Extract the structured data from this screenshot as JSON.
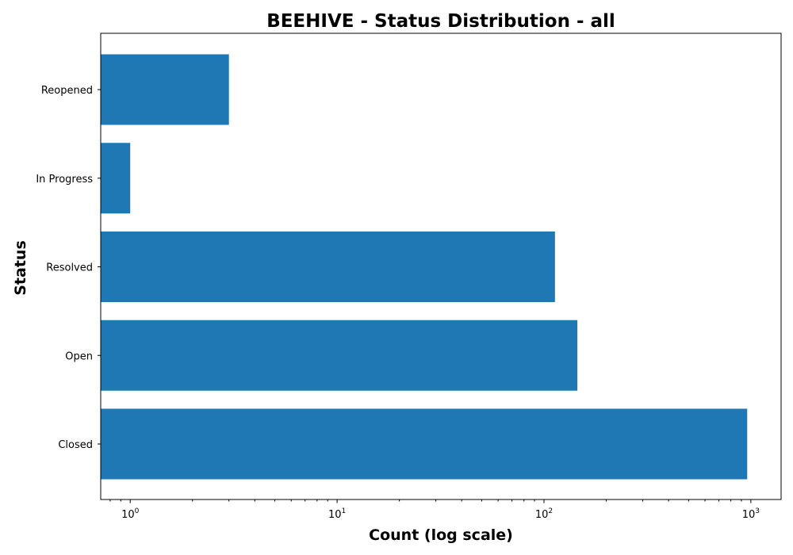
{
  "chart_data": {
    "type": "bar",
    "orientation": "horizontal",
    "title": "BEEHIVE - Status Distribution - all",
    "xlabel": "Count (log scale)",
    "ylabel": "Status",
    "x_scale": "log",
    "xlim": [
      0.72,
      1400
    ],
    "x_ticks": [
      {
        "value": 1,
        "base": "10",
        "exp": "0"
      },
      {
        "value": 10,
        "base": "10",
        "exp": "1"
      },
      {
        "value": 100,
        "base": "10",
        "exp": "2"
      },
      {
        "value": 1000,
        "base": "10",
        "exp": "3"
      }
    ],
    "categories": [
      "Closed",
      "Open",
      "Resolved",
      "In Progress",
      "Reopened"
    ],
    "values": [
      960,
      145,
      113,
      1,
      3
    ],
    "bar_color": "#1f77b4",
    "grid": false,
    "legend": "none"
  }
}
